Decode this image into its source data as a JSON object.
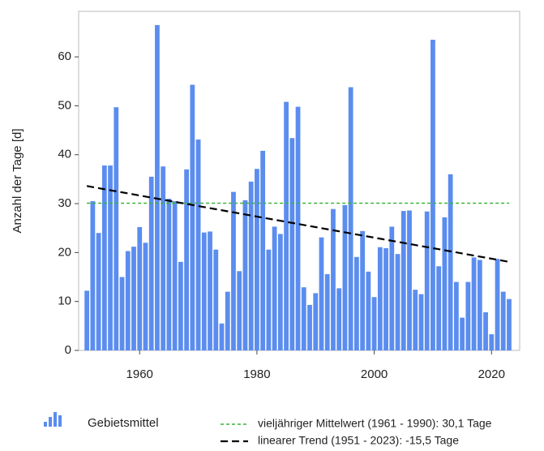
{
  "chart_data": {
    "type": "bar",
    "y_label": "Anzahl der Tage [d]",
    "x": [
      1951,
      1952,
      1953,
      1954,
      1955,
      1956,
      1957,
      1958,
      1959,
      1960,
      1961,
      1962,
      1963,
      1964,
      1965,
      1966,
      1967,
      1968,
      1969,
      1970,
      1971,
      1972,
      1973,
      1974,
      1975,
      1976,
      1977,
      1978,
      1979,
      1980,
      1981,
      1982,
      1983,
      1984,
      1985,
      1986,
      1987,
      1988,
      1989,
      1990,
      1991,
      1992,
      1993,
      1994,
      1995,
      1996,
      1997,
      1998,
      1999,
      2000,
      2001,
      2002,
      2003,
      2004,
      2005,
      2006,
      2007,
      2008,
      2009,
      2010,
      2011,
      2012,
      2013,
      2014,
      2015,
      2016,
      2017,
      2018,
      2019,
      2020,
      2021,
      2022,
      2023
    ],
    "series": [
      {
        "name": "Gebietsmittel",
        "color": "#5b8def",
        "values": [
          12.2,
          30.5,
          24,
          37.8,
          37.8,
          49.7,
          15,
          20.3,
          21.2,
          25.2,
          22,
          35.5,
          66.5,
          37.6,
          31,
          30.5,
          18.1,
          37,
          54.3,
          43.1,
          24.1,
          24.3,
          20.6,
          5.5,
          12,
          32.4,
          16.2,
          30.7,
          34.5,
          37.1,
          40.8,
          20.6,
          25.3,
          23.8,
          50.8,
          43.4,
          49.8,
          12.9,
          9.3,
          11.7,
          23.1,
          15.6,
          28.9,
          12.7,
          29.7,
          53.8,
          19.1,
          24.4,
          16.1,
          10.9,
          21.1,
          20.9,
          25.3,
          19.7,
          28.5,
          28.6,
          12.4,
          11.5,
          28.4,
          63.5,
          17.2,
          27.2,
          36,
          14,
          6.7,
          14,
          19,
          18.5,
          7.8,
          3.3,
          18.7,
          12,
          10.5
        ]
      }
    ],
    "mean_line": {
      "name": "vieljähriger Mittelwert (1961 - 1990): 30,1 Tage",
      "value": 30.1,
      "x": [
        1951,
        2023
      ],
      "color": "#3cb43c"
    },
    "trend_line": {
      "name": "linearer Trend (1951 - 2023): -15,5 Tage",
      "x": [
        1951,
        2023
      ],
      "values": [
        33.6,
        18.1
      ],
      "color": "#000000"
    },
    "xlim": [
      1949.6,
      2024.8
    ],
    "xticks": [
      1960,
      1980,
      2000,
      2020
    ],
    "ylim": [
      0,
      69.3
    ],
    "yticks": [
      0,
      10,
      20,
      30,
      40,
      50,
      60
    ]
  }
}
